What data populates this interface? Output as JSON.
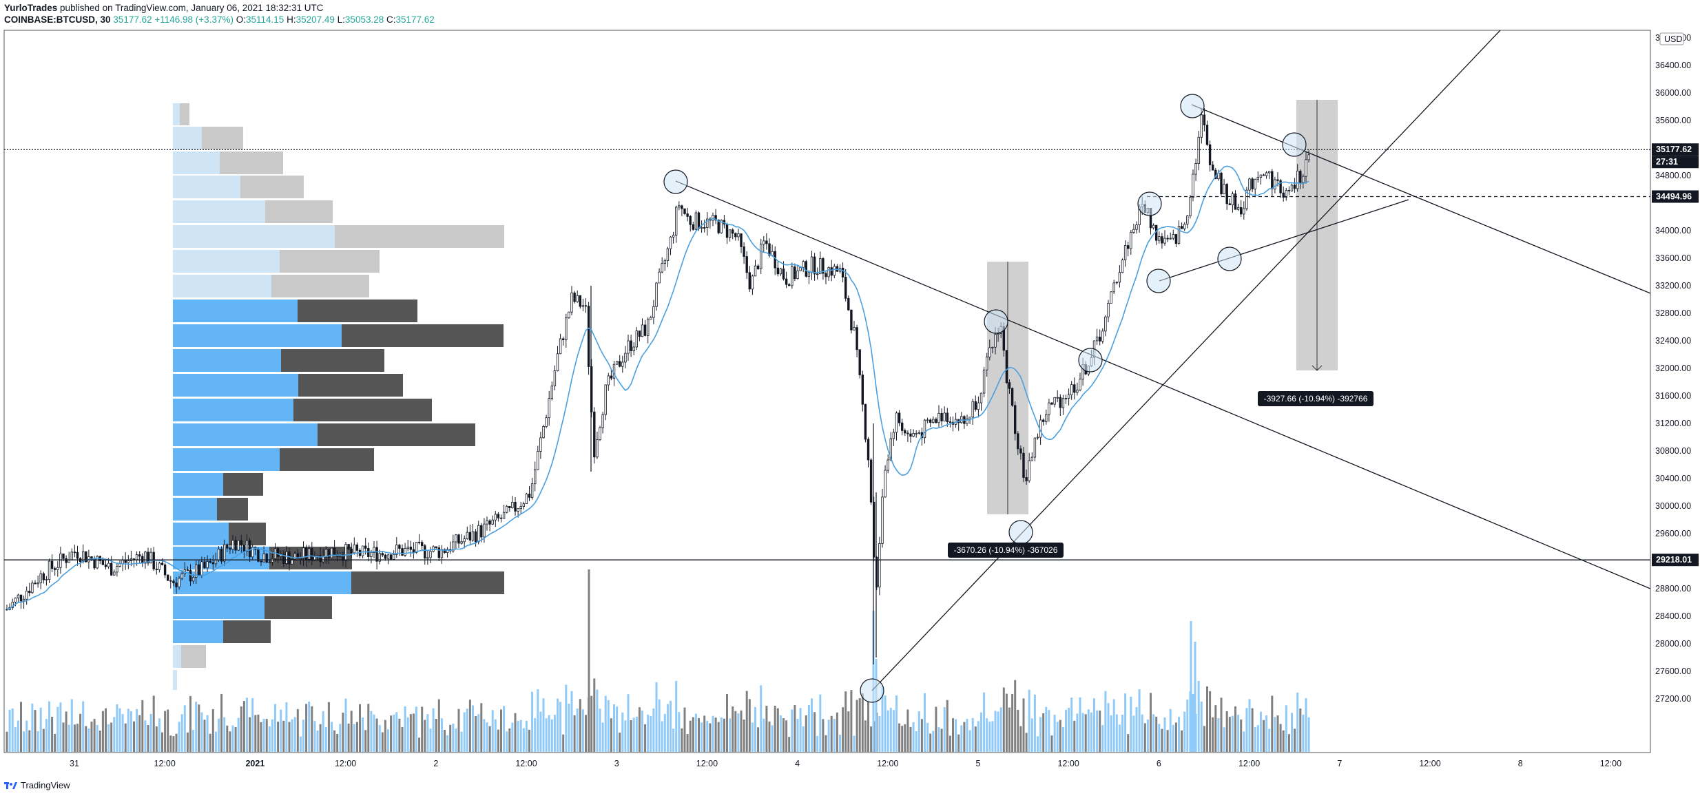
{
  "header": {
    "author": "YurloTrades",
    "published": " published on TradingView.com, January 06, 2021 18:32:31 UTC",
    "symbol": "COINBASE:BTCUSD, 30",
    "last": "35177.62",
    "change": "+1146.98 (+3.37%)",
    "o_label": "O:",
    "o": "35114.15",
    "h_label": "H:",
    "h": "35207.49",
    "l_label": "L:",
    "l": "35053.28",
    "c_label": "C:",
    "c": "35177.62"
  },
  "axis": {
    "currency": "USD",
    "ticks": [
      "36800.00",
      "36400.00",
      "36000.00",
      "35600.00",
      "34800.00",
      "34000.00",
      "33600.00",
      "33200.00",
      "32800.00",
      "32400.00",
      "32000.00",
      "31600.00",
      "31200.00",
      "30800.00",
      "30400.00",
      "30000.00",
      "29600.00",
      "28800.00",
      "28400.00",
      "28000.00",
      "27600.00",
      "27200.00"
    ],
    "price_tag": "35177.62",
    "countdown": "27:31",
    "level_tag": "34494.96",
    "line_tag": "29218.01"
  },
  "x_axis": [
    "31",
    "12:00",
    "2021",
    "12:00",
    "2",
    "12:00",
    "3",
    "12:00",
    "4",
    "12:00",
    "5",
    "12:00",
    "6",
    "12:00",
    "7",
    "12:00",
    "8",
    "12:00"
  ],
  "measures": [
    {
      "label": "-3670.26 (-10.94%) -367026"
    },
    {
      "label": "-3927.66 (-10.94%) -392766"
    }
  ],
  "footer": {
    "brand": "TradingView"
  },
  "colors": {
    "candle": "#131722",
    "ma": "#4a9fe0",
    "vol_up": "#90caf9",
    "vol_down": "#808080",
    "vp_light_blue": "#cfe5f6",
    "vp_light_gray": "#c9c9c9",
    "vp_blue": "#64b5f6",
    "vp_dark": "#555555"
  },
  "chart_data": {
    "type": "candlestick",
    "ylim": [
      27000,
      37000
    ],
    "key_points": [
      {
        "x": "Jan 3 06:00",
        "y": 34700
      },
      {
        "x": "Jan 4 11:00",
        "y": 27750
      },
      {
        "x": "Jan 5 04:00",
        "y": 32850
      },
      {
        "x": "Jan 5 09:00",
        "y": 29900
      },
      {
        "x": "Jan 6 03:00",
        "y": 35850
      },
      {
        "x": "Jan 6 18:00",
        "y": 35177.62
      }
    ],
    "horizontal_lines": [
      35177.62,
      34494.96,
      29218.01
    ],
    "measures": [
      {
        "from": 33550,
        "to": 29880,
        "change": -3670.26,
        "pct": -10.94
      },
      {
        "from": 35900,
        "to": 31970,
        "change": -3927.66,
        "pct": -10.94
      }
    ]
  }
}
